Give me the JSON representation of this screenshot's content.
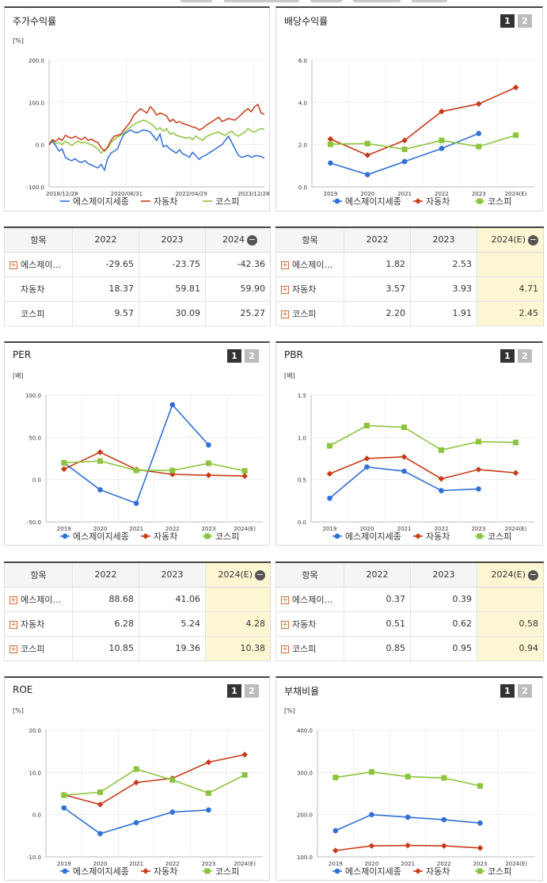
{
  "colors": {
    "company": "#2f6fd6",
    "auto": "#c83a16",
    "kospi": "#8cc43c"
  },
  "legend": [
    "에스제이지세종",
    "자동차",
    "코스피"
  ],
  "panels": {
    "stock": {
      "title": "주가수익률",
      "chart_data": {
        "type": "line",
        "unit": "[%]",
        "ylim": [
          -100,
          200
        ],
        "yticks": [
          "200.0",
          "100.0",
          "0.0",
          "-100.0"
        ],
        "xticks": [
          "2018/12/28",
          "2020/08/31",
          "2022/04/29",
          "2023/12/28"
        ],
        "series": [
          {
            "name": "에스제이지세종",
            "values": [
              0,
              8,
              -2,
              -15,
              -10,
              -30,
              -35,
              -38,
              -33,
              -40,
              -42,
              -38,
              -45,
              -48,
              -52,
              -55,
              -47,
              -60,
              -32,
              -20,
              -15,
              -10,
              10,
              25,
              30,
              35,
              30,
              28,
              32,
              35,
              33,
              30,
              20,
              10,
              25,
              -5,
              -2,
              -10,
              -15,
              -20,
              -12,
              -22,
              -25,
              -30,
              -18,
              -26,
              -35,
              -28,
              -25,
              -20,
              -15,
              -10,
              -5,
              0,
              10,
              20,
              5,
              -10,
              -25,
              -30,
              -28,
              -25,
              -30,
              -27,
              -26,
              -28,
              -32
            ]
          },
          {
            "name": "자동차",
            "values": [
              0,
              12,
              8,
              15,
              10,
              22,
              18,
              15,
              20,
              15,
              12,
              18,
              10,
              13,
              8,
              5,
              -8,
              -15,
              -5,
              10,
              20,
              22,
              25,
              35,
              45,
              55,
              70,
              78,
              85,
              80,
              75,
              90,
              82,
              70,
              75,
              72,
              68,
              55,
              60,
              52,
              55,
              50,
              48,
              45,
              42,
              40,
              35,
              38,
              45,
              50,
              55,
              60,
              65,
              55,
              58,
              62,
              60,
              58,
              65,
              72,
              80,
              85,
              78,
              90,
              95,
              75,
              72
            ]
          },
          {
            "name": "코스피",
            "values": [
              0,
              10,
              3,
              5,
              0,
              8,
              3,
              -2,
              5,
              8,
              4,
              6,
              2,
              0,
              -5,
              -10,
              -20,
              -12,
              -8,
              5,
              12,
              18,
              22,
              28,
              35,
              42,
              48,
              52,
              55,
              58,
              55,
              50,
              45,
              35,
              40,
              32,
              38,
              25,
              28,
              22,
              20,
              18,
              15,
              18,
              12,
              20,
              15,
              10,
              18,
              22,
              25,
              28,
              30,
              25,
              22,
              28,
              32,
              24,
              20,
              25,
              30,
              38,
              32,
              30,
              35,
              38,
              36
            ]
          }
        ]
      }
    },
    "dividend": {
      "title": "배당수익률",
      "btn1": "1",
      "btn2": "2",
      "chart_data": {
        "type": "line",
        "ylim": [
          0,
          6
        ],
        "yticks": [
          "6.0",
          "4.0",
          "2.0",
          "0.0"
        ],
        "categories": [
          "2019",
          "2020",
          "2021",
          "2022",
          "2023",
          "2024(E)"
        ],
        "series": [
          {
            "name": "에스제이지세종",
            "values": [
              1.13,
              0.58,
              1.2,
              1.82,
              2.53,
              null
            ]
          },
          {
            "name": "자동차",
            "values": [
              2.27,
              1.5,
              2.2,
              3.57,
              3.93,
              4.71
            ]
          },
          {
            "name": "코스피",
            "values": [
              2.02,
              2.05,
              1.78,
              2.2,
              1.91,
              2.45
            ]
          }
        ]
      }
    },
    "per": {
      "title": "PER",
      "btn1": "1",
      "btn2": "2",
      "chart_data": {
        "type": "line",
        "unit": "[배]",
        "ylim": [
          -50,
          100
        ],
        "yticks": [
          "100.0",
          "50.0",
          "0.0",
          "-50.0"
        ],
        "categories": [
          "2019",
          "2020",
          "2021",
          "2022",
          "2023",
          "2024(E)"
        ],
        "series": [
          {
            "name": "에스제이지세종",
            "values": [
              20,
              -12,
              -28,
              88.68,
              41.06,
              null
            ]
          },
          {
            "name": "자동차",
            "values": [
              12.5,
              32.5,
              12,
              6.28,
              5.24,
              4.28
            ]
          },
          {
            "name": "코스피",
            "values": [
              20,
              22,
              11,
              10.85,
              19.36,
              10.38
            ]
          }
        ]
      }
    },
    "pbr": {
      "title": "PBR",
      "btn1": "1",
      "btn2": "2",
      "chart_data": {
        "type": "line",
        "unit": "[배]",
        "ylim": [
          0,
          1.5
        ],
        "yticks": [
          "1.5",
          "1.0",
          "0.5",
          "0.0"
        ],
        "categories": [
          "2019",
          "2020",
          "2021",
          "2022",
          "2023",
          "2024(E)"
        ],
        "series": [
          {
            "name": "에스제이지세종",
            "values": [
              0.28,
              0.65,
              0.6,
              0.37,
              0.39,
              null
            ]
          },
          {
            "name": "자동차",
            "values": [
              0.57,
              0.75,
              0.77,
              0.51,
              0.62,
              0.58
            ]
          },
          {
            "name": "코스피",
            "values": [
              0.9,
              1.14,
              1.12,
              0.85,
              0.95,
              0.94
            ]
          }
        ]
      }
    },
    "roe": {
      "title": "ROE",
      "btn1": "1",
      "btn2": "2",
      "chart_data": {
        "type": "line",
        "unit": "[%]",
        "ylim": [
          -10,
          20
        ],
        "yticks": [
          "20.0",
          "10.0",
          "0.0",
          "-10.0"
        ],
        "categories": [
          "2019",
          "2020",
          "2021",
          "2022",
          "2023",
          "2024(E)"
        ],
        "series": [
          {
            "name": "에스제이지세종",
            "values": [
              1.6,
              -4.5,
              -1.9,
              0.6,
              1.1,
              null
            ]
          },
          {
            "name": "자동차",
            "values": [
              4.7,
              2.4,
              7.6,
              8.6,
              12.4,
              14.2
            ]
          },
          {
            "name": "코스피",
            "values": [
              4.6,
              5.3,
              10.8,
              8.2,
              5.1,
              9.4
            ]
          }
        ]
      }
    },
    "debt": {
      "title": "부채비율",
      "btn1": "1",
      "btn2": "2",
      "chart_data": {
        "type": "line",
        "unit": "[%]",
        "ylim": [
          100,
          400
        ],
        "yticks": [
          "400.0",
          "300.0",
          "200.0",
          "100.0"
        ],
        "categories": [
          "2019",
          "2020",
          "2021",
          "2022",
          "2023",
          "2024(E)"
        ],
        "series": [
          {
            "name": "에스제이지세종",
            "values": [
              162,
              200,
              194,
              188,
              180,
              null
            ]
          },
          {
            "name": "자동차",
            "values": [
              115,
              126,
              127,
              126,
              121,
              null
            ]
          },
          {
            "name": "코스피",
            "values": [
              288,
              301,
              290,
              287,
              268,
              null
            ]
          }
        ]
      }
    }
  },
  "tables": {
    "stock": {
      "header": [
        "항목",
        "2022",
        "2023",
        "2024"
      ],
      "minus": "−",
      "rows": [
        {
          "name": "에스제이…",
          "plus": "+",
          "values": [
            "-29.65",
            "-23.75",
            "-42.36"
          ]
        },
        {
          "name": "자동차",
          "plus": "",
          "values": [
            "18.37",
            "59.81",
            "59.90"
          ]
        },
        {
          "name": "코스피",
          "plus": "",
          "values": [
            "9.57",
            "30.09",
            "25.27"
          ]
        }
      ]
    },
    "dividend": {
      "header": [
        "항목",
        "2022",
        "2023",
        "2024(E)"
      ],
      "minus": "−",
      "rows": [
        {
          "name": "에스제이…",
          "plus": "+",
          "values": [
            "1.82",
            "2.53",
            ""
          ]
        },
        {
          "name": "자동차",
          "plus": "+",
          "values": [
            "3.57",
            "3.93",
            "4.71"
          ]
        },
        {
          "name": "코스피",
          "plus": "+",
          "values": [
            "2.20",
            "1.91",
            "2.45"
          ]
        }
      ]
    },
    "per": {
      "header": [
        "항목",
        "2022",
        "2023",
        "2024(E)"
      ],
      "minus": "−",
      "rows": [
        {
          "name": "에스제이…",
          "plus": "+",
          "values": [
            "88.68",
            "41.06",
            ""
          ]
        },
        {
          "name": "자동차",
          "plus": "+",
          "values": [
            "6.28",
            "5.24",
            "4.28"
          ]
        },
        {
          "name": "코스피",
          "plus": "+",
          "values": [
            "10.85",
            "19.36",
            "10.38"
          ]
        }
      ]
    },
    "pbr": {
      "header": [
        "항목",
        "2022",
        "2023",
        "2024(E)"
      ],
      "minus": "−",
      "rows": [
        {
          "name": "에스제이…",
          "plus": "+",
          "values": [
            "0.37",
            "0.39",
            ""
          ]
        },
        {
          "name": "자동차",
          "plus": "+",
          "values": [
            "0.51",
            "0.62",
            "0.58"
          ]
        },
        {
          "name": "코스피",
          "plus": "+",
          "values": [
            "0.85",
            "0.95",
            "0.94"
          ]
        }
      ]
    }
  }
}
